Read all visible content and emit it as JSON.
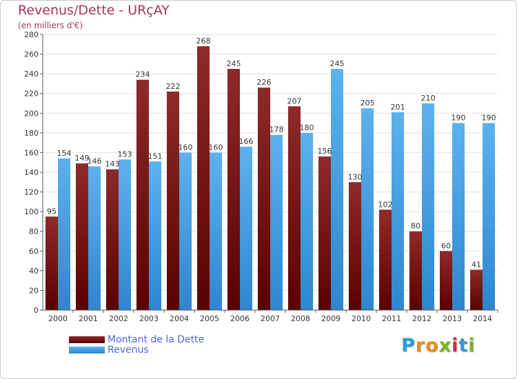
{
  "title": "Revenus/Dette - URçAY",
  "subtitle": "(en milliers d'€)",
  "logo": {
    "letters": [
      "P",
      "r",
      "o",
      "x",
      "i",
      "t",
      "i"
    ],
    "colors": [
      "#2f9ad8",
      "#f08a1c",
      "#f08a1c",
      "#7ab51d",
      "#d9283c",
      "#2f9ad8",
      "#7ab51d"
    ]
  },
  "colors": {
    "debt_top": "#8e2a2a",
    "debt_bottom": "#5a0000",
    "rev_top": "#5cb2ee",
    "rev_bottom": "#2f86cf",
    "grid": "#e2e2e2",
    "title": "#a5345c",
    "legend_text": "#4a6bd6"
  },
  "chart_data": {
    "type": "bar",
    "title": "Revenus/Dette - URçAY",
    "ylabel": "(en milliers d'€)",
    "categories": [
      "2000",
      "2001",
      "2002",
      "2003",
      "2004",
      "2005",
      "2006",
      "2007",
      "2008",
      "2009",
      "2010",
      "2011",
      "2012",
      "2013",
      "2014"
    ],
    "series": [
      {
        "name": "Montant de la Dette",
        "values": [
          95,
          149,
          143,
          234,
          222,
          268,
          245,
          226,
          207,
          156,
          130,
          102,
          80,
          60,
          41
        ]
      },
      {
        "name": "Revenus",
        "values": [
          154,
          146,
          153,
          151,
          160,
          160,
          166,
          178,
          180,
          245,
          205,
          201,
          210,
          190,
          190
        ]
      }
    ],
    "ylim": [
      0,
      280
    ],
    "yticks": [
      0,
      20,
      40,
      60,
      80,
      100,
      120,
      140,
      160,
      180,
      200,
      220,
      240,
      260,
      280
    ],
    "grid": true,
    "legend": "bottom-left"
  }
}
